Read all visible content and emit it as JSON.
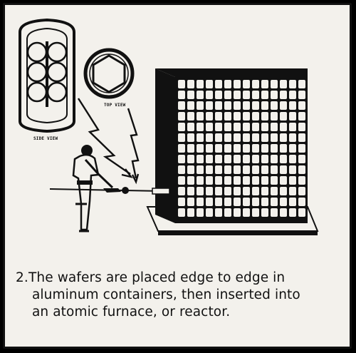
{
  "caption": {
    "number": "2.",
    "line1": "The wafers are placed edge to edge in",
    "line2": "aluminum containers, then inserted into",
    "line3": "an atomic furnace, or reactor."
  },
  "labels": {
    "side_view": "SIDE VIEW",
    "top_view": "TOP VIEW"
  },
  "colors": {
    "ink": "#111111",
    "paper": "#f3f1ec",
    "frame": "#000000"
  }
}
